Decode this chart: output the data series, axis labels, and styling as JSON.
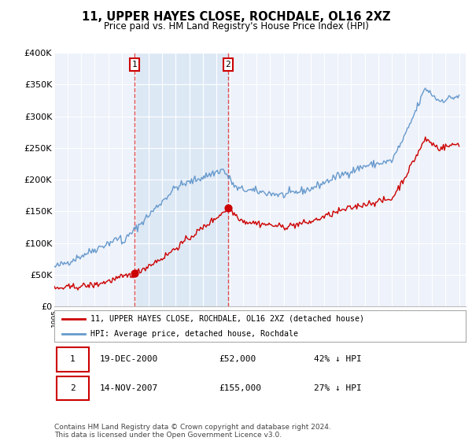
{
  "title": "11, UPPER HAYES CLOSE, ROCHDALE, OL16 2XZ",
  "subtitle": "Price paid vs. HM Land Registry's House Price Index (HPI)",
  "footnote": "Contains HM Land Registry data © Crown copyright and database right 2024.\nThis data is licensed under the Open Government Licence v3.0.",
  "legend_line1": "11, UPPER HAYES CLOSE, ROCHDALE, OL16 2XZ (detached house)",
  "legend_line2": "HPI: Average price, detached house, Rochdale",
  "table": [
    {
      "num": 1,
      "date": "19-DEC-2000",
      "price": "£52,000",
      "hpi": "42% ↓ HPI"
    },
    {
      "num": 2,
      "date": "14-NOV-2007",
      "price": "£155,000",
      "hpi": "27% ↓ HPI"
    }
  ],
  "sale1_year": 2000.96,
  "sale1_price": 52000,
  "sale2_year": 2007.87,
  "sale2_price": 155000,
  "ylim": [
    0,
    400000
  ],
  "xlim_start": 1995.0,
  "xlim_end": 2025.5,
  "yticks": [
    0,
    50000,
    100000,
    150000,
    200000,
    250000,
    300000,
    350000,
    400000
  ],
  "ytick_labels": [
    "£0",
    "£50K",
    "£100K",
    "£150K",
    "£200K",
    "£250K",
    "£300K",
    "£350K",
    "£400K"
  ],
  "xticks": [
    1995,
    1996,
    1997,
    1998,
    1999,
    2000,
    2001,
    2002,
    2003,
    2004,
    2005,
    2006,
    2007,
    2008,
    2009,
    2010,
    2011,
    2012,
    2013,
    2014,
    2015,
    2016,
    2017,
    2018,
    2019,
    2020,
    2021,
    2022,
    2023,
    2024,
    2025
  ],
  "hpi_color": "#6699cc",
  "price_color": "#cc0000",
  "sale_color": "#cc0000",
  "vline_color": "#dd3333",
  "shade_color": "#dde8f5",
  "bg_color": "#eef2fa",
  "grid_color": "#ffffff",
  "box_color": "#cc0000"
}
